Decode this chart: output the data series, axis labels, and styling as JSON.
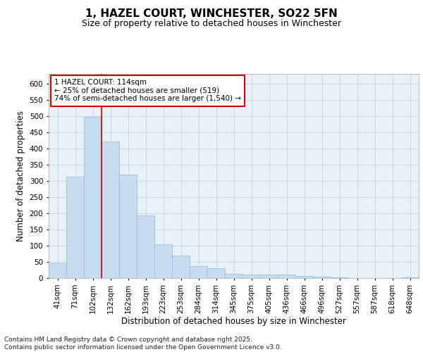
{
  "title": "1, HAZEL COURT, WINCHESTER, SO22 5FN",
  "subtitle": "Size of property relative to detached houses in Winchester",
  "xlabel": "Distribution of detached houses by size in Winchester",
  "ylabel": "Number of detached properties",
  "categories": [
    "41sqm",
    "71sqm",
    "102sqm",
    "132sqm",
    "162sqm",
    "193sqm",
    "223sqm",
    "253sqm",
    "284sqm",
    "314sqm",
    "345sqm",
    "375sqm",
    "405sqm",
    "436sqm",
    "466sqm",
    "496sqm",
    "527sqm",
    "557sqm",
    "587sqm",
    "618sqm",
    "648sqm"
  ],
  "values": [
    46,
    313,
    497,
    422,
    319,
    193,
    105,
    70,
    37,
    30,
    12,
    10,
    11,
    10,
    7,
    5,
    2,
    1,
    0,
    1,
    2
  ],
  "bar_color": "#c8dcf0",
  "bar_edge_color": "#90b8d8",
  "grid_color": "#c8d8e8",
  "background_color": "#e8f0f8",
  "vline_index": 2,
  "vline_color": "#cc0000",
  "annotation_line1": "1 HAZEL COURT: 114sqm",
  "annotation_line2": "← 25% of detached houses are smaller (519)",
  "annotation_line3": "74% of semi-detached houses are larger (1,540) →",
  "annotation_box_color": "#ffffff",
  "annotation_box_edge": "#cc0000",
  "ylim": [
    0,
    630
  ],
  "yticks": [
    0,
    50,
    100,
    150,
    200,
    250,
    300,
    350,
    400,
    450,
    500,
    550,
    600
  ],
  "footer": "Contains HM Land Registry data © Crown copyright and database right 2025.\nContains public sector information licensed under the Open Government Licence v3.0.",
  "title_fontsize": 11,
  "subtitle_fontsize": 9,
  "axis_label_fontsize": 8.5,
  "tick_fontsize": 7.5,
  "annotation_fontsize": 7.5,
  "footer_fontsize": 6.5
}
